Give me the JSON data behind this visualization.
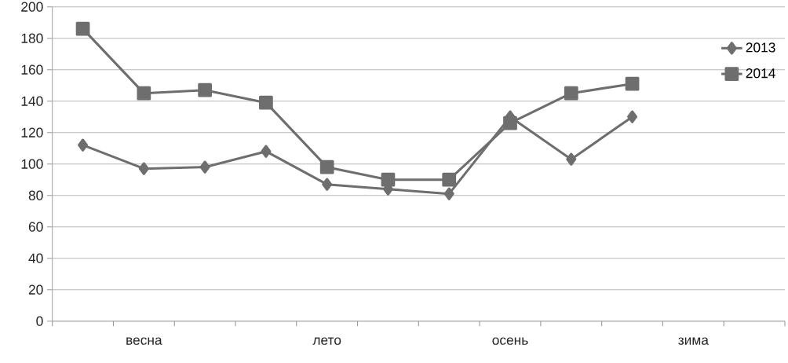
{
  "chart_data": {
    "type": "line",
    "categories": [
      null,
      "весна",
      null,
      null,
      "лето",
      null,
      null,
      "осень",
      null,
      null,
      "зима",
      null
    ],
    "series": [
      {
        "name": "2013",
        "color": "#6e6e6e",
        "marker": "diamond",
        "values": [
          112,
          97,
          98,
          108,
          87,
          84,
          81,
          130,
          103,
          130,
          null,
          null
        ]
      },
      {
        "name": "2014",
        "color": "#6e6e6e",
        "marker": "square",
        "values": [
          186,
          145,
          147,
          139,
          98,
          90,
          90,
          126,
          145,
          151,
          null,
          null
        ]
      }
    ],
    "ylim": [
      0,
      200
    ],
    "yticks": [
      0,
      20,
      40,
      60,
      80,
      100,
      120,
      140,
      160,
      180,
      200
    ],
    "grid": "y",
    "legend": "right",
    "line_style": "solid"
  }
}
